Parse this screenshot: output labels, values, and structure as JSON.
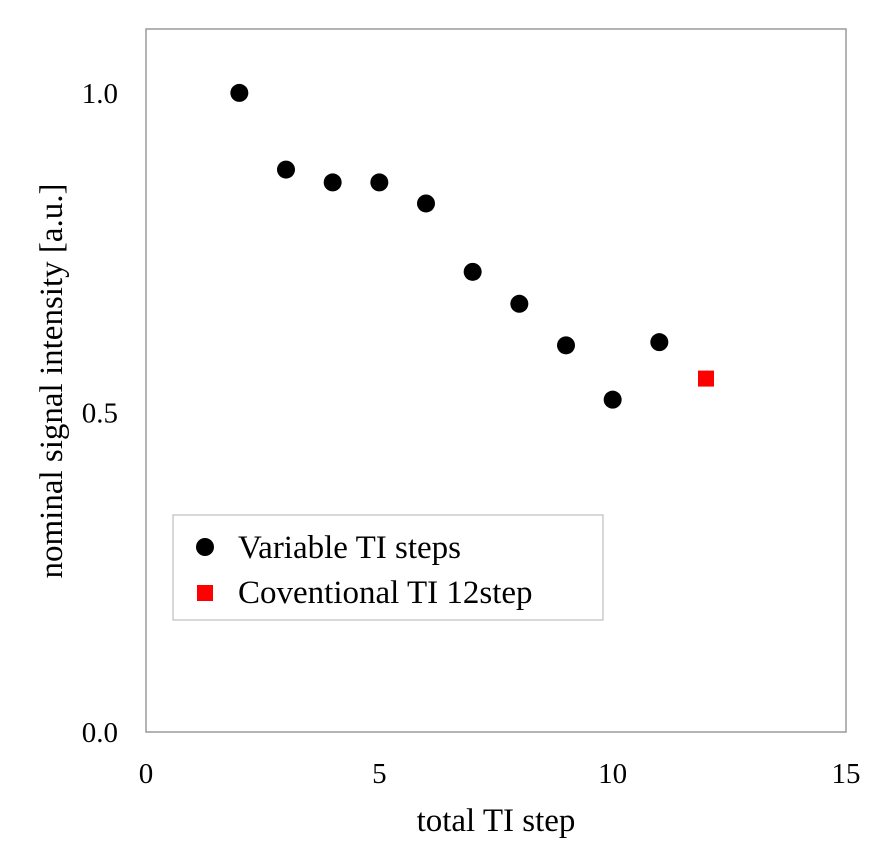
{
  "chart_data": {
    "type": "scatter",
    "title": "",
    "xlabel": "total TI step",
    "ylabel": "nominal signal intensity [a.u.]",
    "xlim": [
      0,
      15
    ],
    "ylim": [
      0.0,
      1.1
    ],
    "xticks": [
      0,
      5,
      10,
      15
    ],
    "yticks": [
      0.0,
      0.5,
      1.0
    ],
    "xtick_labels": [
      "0",
      "5",
      "10",
      "15"
    ],
    "ytick_labels": [
      "0.0",
      "0.5",
      "1.0"
    ],
    "grid": false,
    "legend_position": "bottom-left",
    "series": [
      {
        "name": "Variable TI steps",
        "marker": "circle",
        "color": "#000000",
        "x": [
          2,
          3,
          4,
          5,
          6,
          7,
          8,
          9,
          10,
          11
        ],
        "y": [
          1.0,
          0.88,
          0.86,
          0.86,
          0.827,
          0.72,
          0.67,
          0.605,
          0.52,
          0.61
        ]
      },
      {
        "name": "Coventional TI 12step",
        "marker": "square",
        "color": "#ff0000",
        "x": [
          12
        ],
        "y": [
          0.553
        ]
      }
    ]
  }
}
